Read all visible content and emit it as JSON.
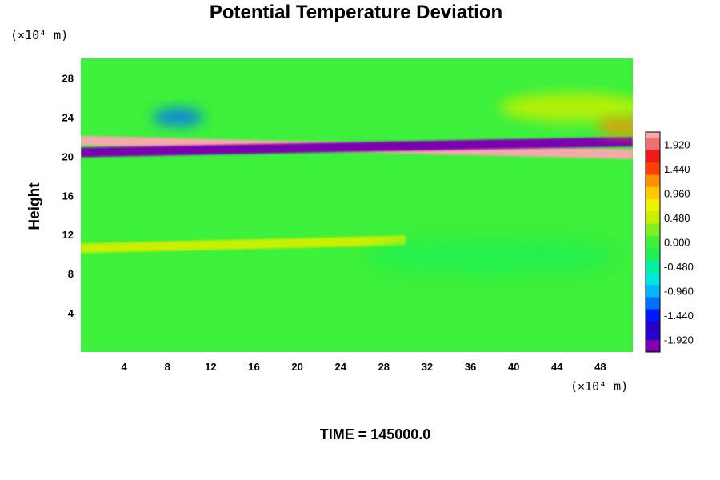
{
  "chart_data": {
    "type": "heatmap",
    "title": "Potential Temperature Deviation",
    "ylabel": "Height",
    "x_unit": "(×10⁴ m)",
    "y_unit": "(×10⁴ m)",
    "footer": "TIME = 145000.0",
    "xlim": [
      0,
      51
    ],
    "ylim": [
      0,
      30
    ],
    "x_ticks": [
      "4",
      "8",
      "12",
      "16",
      "20",
      "24",
      "28",
      "32",
      "36",
      "40",
      "44",
      "48"
    ],
    "y_ticks": [
      "4",
      "8",
      "12",
      "16",
      "20",
      "24",
      "28"
    ],
    "colorbar": {
      "range": [
        -2.16,
        2.16
      ],
      "tick_values": [
        1.92,
        1.44,
        0.96,
        0.48,
        0.0,
        -0.48,
        -0.96,
        -1.44,
        -1.92
      ],
      "tick_labels": [
        "1.920",
        "1.440",
        "0.960",
        "0.480",
        "0.000",
        "-0.480",
        "-0.960",
        "-1.440",
        "-1.920"
      ],
      "low_color": "#7a00b0",
      "high_color": "#f5aaaa"
    },
    "features": [
      {
        "x": [
          0,
          51
        ],
        "y": [
          21.6,
          20.2
        ],
        "value": 2.16,
        "kind": "band"
      },
      {
        "x": [
          0,
          51
        ],
        "y": [
          20.4,
          21.5
        ],
        "value": -2.16,
        "kind": "band"
      },
      {
        "x": [
          8,
          10
        ],
        "y": [
          23.6,
          24.4
        ],
        "value": -1.1,
        "kind": "blob"
      },
      {
        "x": [
          40,
          51
        ],
        "y": [
          24,
          26
        ],
        "value": 0.55,
        "kind": "blob"
      },
      {
        "x": [
          49,
          51
        ],
        "y": [
          22.6,
          23.4
        ],
        "value": 1.3,
        "kind": "blob"
      },
      {
        "x": [
          0,
          30
        ],
        "y": [
          10.6,
          11.4
        ],
        "value": 0.45,
        "kind": "band"
      },
      {
        "x": [
          28,
          48
        ],
        "y": [
          8.5,
          11
        ],
        "value": -0.35,
        "kind": "blob"
      }
    ]
  }
}
